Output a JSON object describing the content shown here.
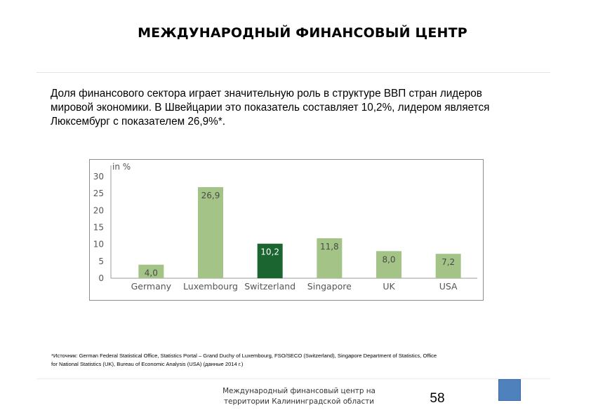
{
  "page": {
    "title": "МЕЖДУНАРОДНЫЙ ФИНАНСОВЫЙ ЦЕНТР",
    "intro_text": "Доля финансового сектора играет значительную роль в структуре ВВП стран лидеров мировой экономики. В Швейцарии это показатель составляет 10,2%, лидером является Люксембург с показателем 26,9%*.",
    "source_note": "*Источник: German Federal Statistical Office, Statistics Portal – Grand Duchy of Luxembourg, FSO/SECO (Switzerland), Singapore Department of Statistics, Office for National Statistics (UK), Bureau of Economic Analysis (USA) (данные 2014 г.)",
    "footer_line1": "Международный финансовый центр на",
    "footer_line2": "территории Калининградской области",
    "page_number": "58"
  },
  "colors": {
    "bar_default": "#a3c486",
    "bar_highlight": "#1b6530",
    "square_accent": "#4f81bd"
  },
  "chart_data": {
    "type": "bar",
    "ylabel": "in %",
    "ylim": [
      0,
      30
    ],
    "yticks": [
      "0",
      "5",
      "10",
      "15",
      "20",
      "25",
      "30"
    ],
    "categories": [
      "Germany",
      "Luxembourg",
      "Switzerland",
      "Singapore",
      "UK",
      "USA"
    ],
    "values": [
      4.0,
      26.9,
      10.2,
      11.8,
      8.0,
      7.2
    ],
    "labels": [
      "4,0",
      "26,9",
      "10,2",
      "11,8",
      "8,0",
      "7,2"
    ],
    "highlight_index": 2,
    "grid": false
  }
}
